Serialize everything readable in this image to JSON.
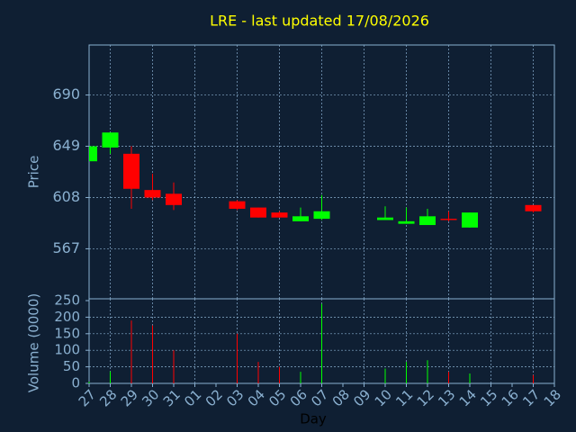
{
  "chart_data": [
    {
      "type": "candlestick",
      "title": "LRE - last updated 17/08/2026",
      "ylabel": "Price",
      "categories": [
        "27",
        "28",
        "29",
        "30",
        "31",
        "01",
        "02",
        "03",
        "04",
        "05",
        "06",
        "07",
        "08",
        "09",
        "10",
        "11",
        "12",
        "13",
        "14",
        "15",
        "16",
        "17",
        "18"
      ],
      "open": [
        637,
        648,
        643,
        614,
        611,
        null,
        null,
        605,
        600,
        596,
        589,
        591,
        null,
        null,
        590,
        587,
        586,
        591,
        584,
        null,
        null,
        602,
        null
      ],
      "high": [
        649,
        660,
        649,
        627,
        620,
        null,
        null,
        606,
        600,
        597,
        600,
        610,
        null,
        null,
        601,
        600,
        599,
        597,
        596,
        null,
        null,
        602,
        null
      ],
      "low": [
        637,
        643,
        599,
        606,
        598,
        null,
        null,
        598,
        592,
        592,
        589,
        590,
        null,
        null,
        590,
        587,
        586,
        589,
        584,
        null,
        null,
        596,
        null
      ],
      "close": [
        649,
        660,
        615,
        608,
        602,
        null,
        null,
        599,
        592,
        592,
        593,
        597,
        null,
        null,
        592,
        589,
        593,
        590,
        596,
        null,
        null,
        597,
        null
      ],
      "up_color": "#00ff00",
      "down_color": "#ff0000",
      "ylim": [
        527,
        730
      ],
      "yticks": [
        567,
        608,
        649,
        690
      ],
      "grid": true
    },
    {
      "type": "bar",
      "ylabel": "Volume (0000)",
      "xlabel": "Day",
      "categories": [
        "27",
        "28",
        "29",
        "30",
        "31",
        "01",
        "02",
        "03",
        "04",
        "05",
        "06",
        "07",
        "08",
        "09",
        "10",
        "11",
        "12",
        "13",
        "14",
        "15",
        "16",
        "17",
        "18"
      ],
      "values": [
        5,
        36,
        190,
        175,
        100,
        null,
        null,
        150,
        65,
        50,
        35,
        240,
        null,
        null,
        45,
        65,
        70,
        35,
        30,
        null,
        null,
        25,
        null
      ],
      "ylim": [
        0,
        250
      ],
      "yticks": [
        0,
        50,
        100,
        150,
        200,
        250
      ],
      "grid": true
    }
  ]
}
